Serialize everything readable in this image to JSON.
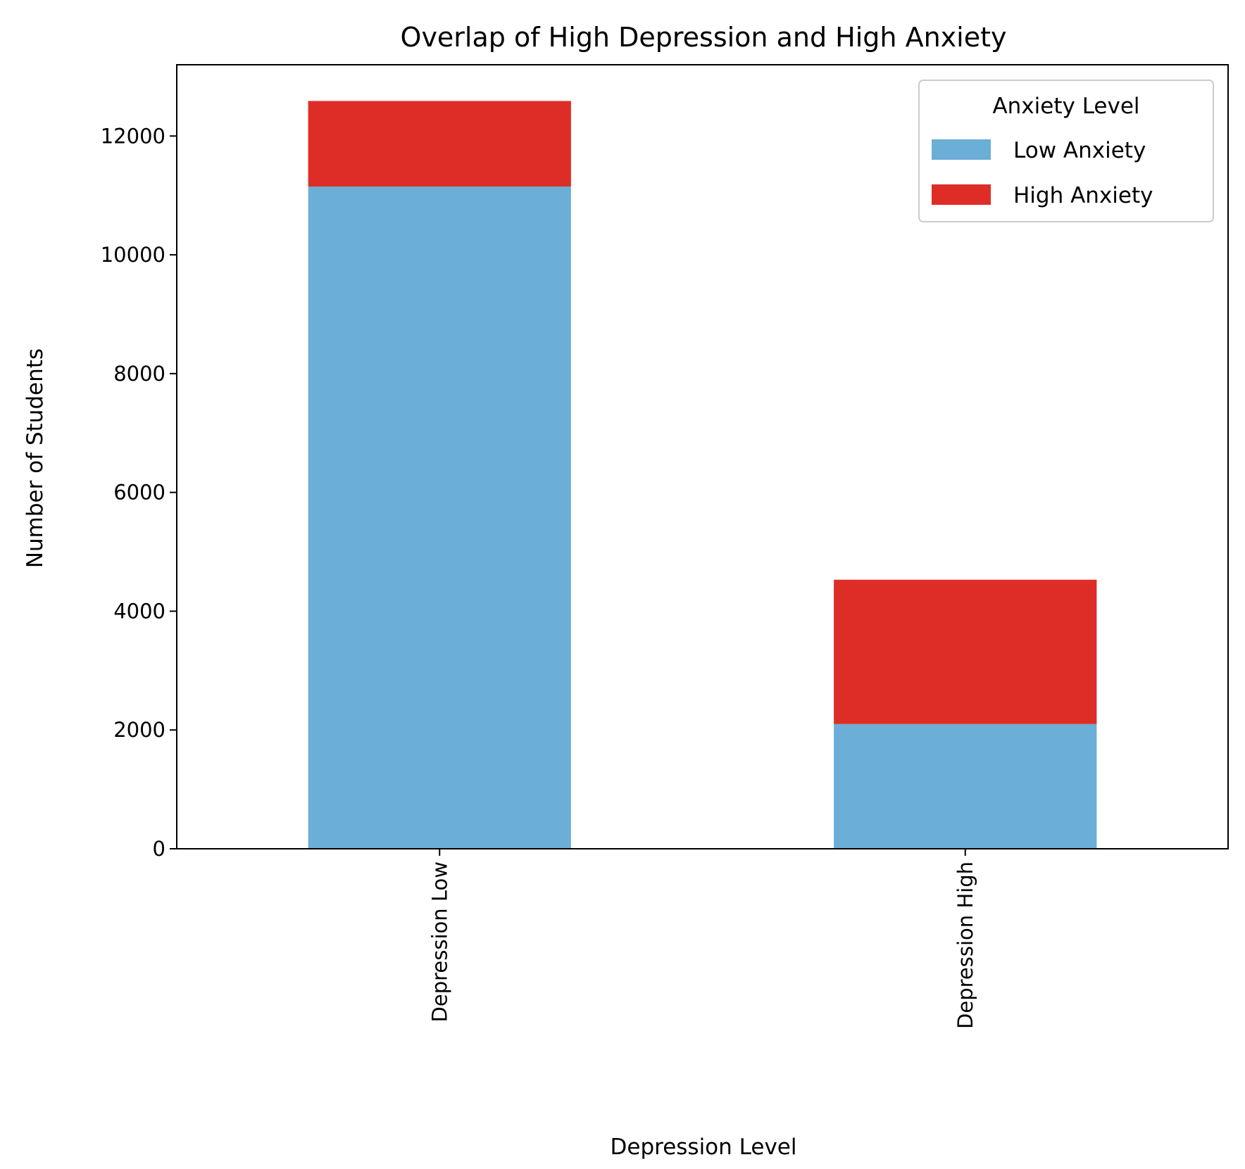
{
  "chart_data": {
    "type": "bar",
    "stacked": true,
    "title": "Overlap of High Depression and High Anxiety",
    "xlabel": "Depression Level",
    "ylabel": "Number of Students",
    "categories": [
      "Depression Low",
      "Depression High"
    ],
    "series": [
      {
        "name": "Low Anxiety",
        "color": "#6baed6",
        "values": [
          11150,
          2100
        ]
      },
      {
        "name": "High Anxiety",
        "color": "#de2d26",
        "values": [
          1440,
          2430
        ]
      }
    ],
    "ylim": [
      0,
      13200
    ],
    "yticks": [
      0,
      2000,
      4000,
      6000,
      8000,
      10000,
      12000
    ],
    "ytick_labels": [
      "0",
      "2000",
      "4000",
      "6000",
      "8000",
      "10000",
      "12000"
    ],
    "grid": false,
    "legend": {
      "title": "Anxiety Level",
      "position": "upper-right"
    }
  }
}
